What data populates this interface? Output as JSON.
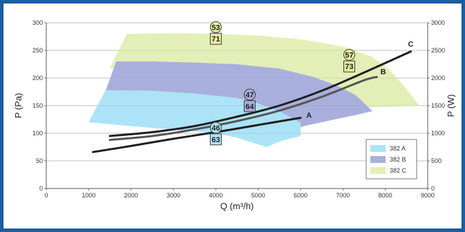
{
  "chart_data": {
    "type": "area",
    "xlabel": "Q (m³/h)",
    "ylabel_left": "P (Pa)",
    "ylabel_right": "P (W)",
    "xlim": [
      0,
      9000
    ],
    "ylim_left": [
      0,
      300
    ],
    "ylim_right": [
      0,
      3000
    ],
    "x_ticks": [
      "0",
      "1000",
      "2000",
      "3000",
      "4000",
      "5000",
      "6000",
      "7000",
      "8000",
      "9000"
    ],
    "y_ticks_left": [
      "0",
      "50",
      "100",
      "150",
      "200",
      "250",
      "300"
    ],
    "y_ticks_right": [
      "0",
      "500",
      "1000",
      "1500",
      "2000",
      "2500",
      "3000"
    ],
    "grid": "horizontal",
    "legend_position": "bottom-right",
    "regions": [
      {
        "name": "382 C",
        "color": "#e3efb6",
        "points": [
          [
            1900,
            280
          ],
          [
            3000,
            281
          ],
          [
            4000,
            280
          ],
          [
            5000,
            277
          ],
          [
            6000,
            270
          ],
          [
            7000,
            257
          ],
          [
            7700,
            238
          ],
          [
            8100,
            215
          ],
          [
            8500,
            180
          ],
          [
            8800,
            150
          ],
          [
            8200,
            148
          ],
          [
            7600,
            147
          ],
          [
            7100,
            138
          ],
          [
            6500,
            140
          ],
          [
            5800,
            125
          ],
          [
            5500,
            115
          ],
          [
            5000,
            108
          ],
          [
            3400,
            185
          ],
          [
            1500,
            218
          ]
        ]
      },
      {
        "name": "382 B",
        "color": "#a9afdd",
        "points": [
          [
            1650,
            230
          ],
          [
            2500,
            230
          ],
          [
            3500,
            228
          ],
          [
            4500,
            225
          ],
          [
            5500,
            217
          ],
          [
            6300,
            202
          ],
          [
            6900,
            185
          ],
          [
            7300,
            169
          ],
          [
            7700,
            140
          ],
          [
            7300,
            133
          ],
          [
            6800,
            125
          ],
          [
            6200,
            115
          ],
          [
            5800,
            108
          ],
          [
            5300,
            102
          ],
          [
            1400,
            177
          ]
        ]
      },
      {
        "name": "382 A",
        "color": "#ace3f7",
        "points": [
          [
            1000,
            120
          ],
          [
            1400,
            178
          ],
          [
            2500,
            177
          ],
          [
            3500,
            172
          ],
          [
            4500,
            164
          ],
          [
            5000,
            154
          ],
          [
            5500,
            140
          ],
          [
            6000,
            119
          ],
          [
            6000,
            95
          ],
          [
            5500,
            85
          ],
          [
            5200,
            75
          ],
          [
            4500,
            92
          ],
          [
            4000,
            100
          ],
          [
            2000,
            113
          ]
        ]
      }
    ],
    "curves": [
      {
        "name": "A",
        "color": "#1e1e1e",
        "points": [
          [
            1100,
            66
          ],
          [
            2000,
            77
          ],
          [
            3000,
            90
          ],
          [
            4000,
            102
          ],
          [
            5000,
            115
          ],
          [
            6000,
            128
          ]
        ]
      },
      {
        "name": "B",
        "color": "#555555",
        "points": [
          [
            1500,
            88
          ],
          [
            2500,
            95
          ],
          [
            3500,
            107
          ],
          [
            4500,
            122
          ],
          [
            5500,
            141
          ],
          [
            6500,
            166
          ],
          [
            7500,
            196
          ],
          [
            7800,
            202
          ]
        ]
      },
      {
        "name": "C",
        "color": "#1e1e1e",
        "points": [
          [
            1500,
            95
          ],
          [
            2500,
            102
          ],
          [
            3500,
            113
          ],
          [
            4500,
            130
          ],
          [
            5500,
            150
          ],
          [
            6500,
            177
          ],
          [
            7500,
            210
          ],
          [
            8600,
            248
          ]
        ]
      }
    ],
    "curve_label_positions": [
      {
        "text": "A",
        "x": 6200,
        "y": 133
      },
      {
        "text": "B",
        "x": 7950,
        "y": 212
      },
      {
        "text": "C",
        "x": 8600,
        "y": 262
      }
    ],
    "badges": [
      {
        "text": "53",
        "shape": "circle",
        "color": "#e8ee9c",
        "x": 4000,
        "y": 292
      },
      {
        "text": "71",
        "shape": "square",
        "color": "#e8ee9c",
        "x": 4000,
        "y": 271
      },
      {
        "text": "57",
        "shape": "circle",
        "color": "#e8ee9c",
        "x": 7150,
        "y": 242
      },
      {
        "text": "73",
        "shape": "square",
        "color": "#e8ee9c",
        "x": 7150,
        "y": 221
      },
      {
        "text": "47",
        "shape": "circle",
        "color": "#a9afdd",
        "x": 4800,
        "y": 170
      },
      {
        "text": "64",
        "shape": "square",
        "color": "#a9afdd",
        "x": 4800,
        "y": 149
      },
      {
        "text": "46",
        "shape": "circle",
        "color": "#ace3f7",
        "x": 4000,
        "y": 110
      },
      {
        "text": "63",
        "shape": "square",
        "color": "#ace3f7",
        "x": 4000,
        "y": 89
      }
    ]
  }
}
